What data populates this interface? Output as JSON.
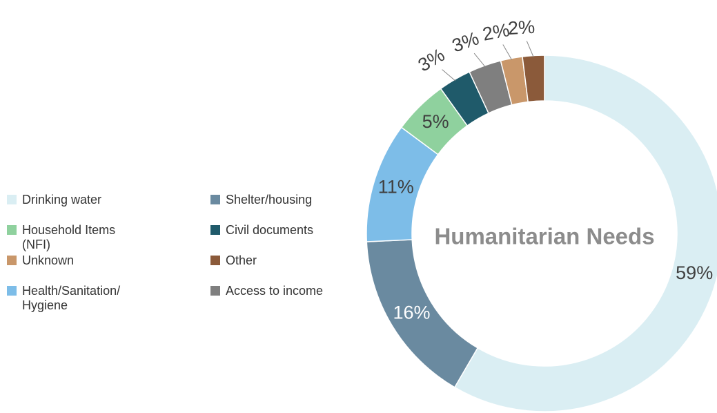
{
  "chart_data": {
    "type": "donut",
    "title": "Humanitarian Needs",
    "categories": [
      "Drinking water",
      "Shelter/housing",
      "Health/Sanitation/ Hygiene",
      "Household Items (NFI)",
      "Civil documents",
      "Access to income",
      "Unknown",
      "Other"
    ],
    "values": [
      59,
      16,
      11,
      5,
      3,
      3,
      2,
      2
    ],
    "value_labels": [
      "59%",
      "16%",
      "11%",
      "5%",
      "3%",
      "3%",
      "2%",
      "2%"
    ],
    "colors": [
      "#daeef3",
      "#6a8aa0",
      "#7dbde8",
      "#8fd19e",
      "#1f5a6a",
      "#7f7f7f",
      "#c9976a",
      "#8b5a3a"
    ],
    "legend": "left"
  }
}
